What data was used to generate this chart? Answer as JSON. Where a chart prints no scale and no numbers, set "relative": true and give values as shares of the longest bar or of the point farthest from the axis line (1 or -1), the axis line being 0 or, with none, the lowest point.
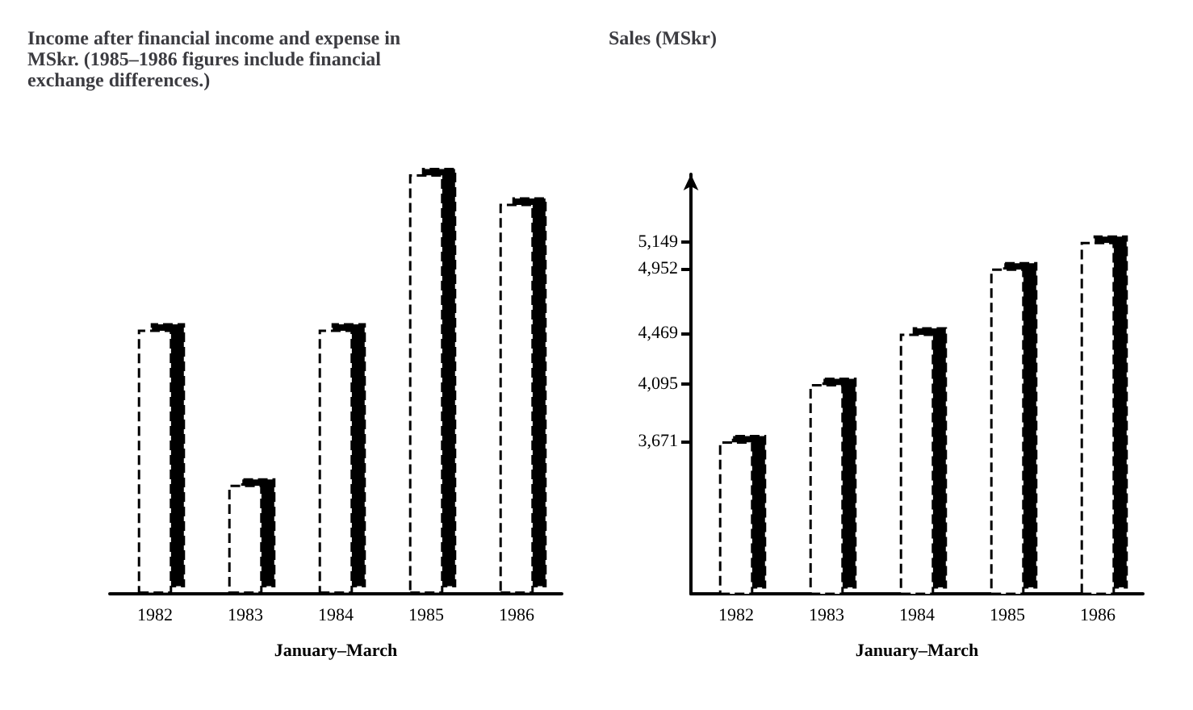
{
  "chart_data": [
    {
      "type": "bar",
      "title": "Income after financial income and expense in MSkr. (1985–1986 figures include financial exchange differences.)",
      "xlabel": "January–March",
      "categories": [
        "1982",
        "1983",
        "1984",
        "1985",
        "1986"
      ],
      "values": [
        0.63,
        0.26,
        0.63,
        1,
        0.93
      ],
      "color": "#ffffff",
      "relative": true,
      "grid": false
    },
    {
      "type": "bar",
      "title": "Sales (MSkr)",
      "xlabel": "January–March",
      "categories": [
        "1982",
        "1983",
        "1984",
        "1985",
        "1986"
      ],
      "values": [
        3671,
        4095,
        4469,
        4952,
        5149
      ],
      "color": "#ffffff",
      "ylim": [
        2540,
        5650
      ],
      "yticks": [
        {
          "value": 3671,
          "label": "3,671"
        },
        {
          "value": 4095,
          "label": "4,095"
        },
        {
          "value": 4469,
          "label": "4,469"
        },
        {
          "value": 4952,
          "label": "4,952"
        },
        {
          "value": 5149,
          "label": "5,149"
        }
      ],
      "grid": false
    }
  ]
}
